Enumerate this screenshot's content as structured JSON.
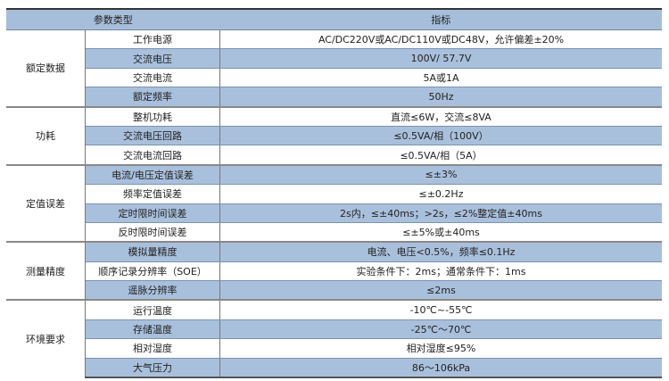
{
  "header": {
    "type": "参数类型",
    "spec": "指标"
  },
  "groups": [
    {
      "name": "额定数据",
      "rows": [
        [
          "工作电源",
          "AC/DC220V或AC/DC110V或DC48V，允许偏差±20%"
        ],
        [
          "交流电压",
          "100V/ 57.7V"
        ],
        [
          "交流电流",
          "5A或1A"
        ],
        [
          "额定频率",
          "50Hz"
        ]
      ]
    },
    {
      "name": "功耗",
      "rows": [
        [
          "整机功耗",
          "直流≤6W，交流≤8VA"
        ],
        [
          "交流电压回路",
          "≤0.5VA/相（100V）"
        ],
        [
          "交流电流回路",
          "≤0.5VA/相（5A）"
        ]
      ]
    },
    {
      "name": "定值误差",
      "rows": [
        [
          "电流/电压定值误差",
          "≤±3%"
        ],
        [
          "频率定值误差",
          "≤±0.2Hz"
        ],
        [
          "定时限时间误差",
          "2s内，≤±40ms；>2s，≤2%整定值±40ms"
        ],
        [
          "反时限时间误差",
          "≤±5%或±40ms"
        ]
      ]
    },
    {
      "name": "测量精度",
      "rows": [
        [
          "模拟量精度",
          "电流、电压<0.5%，频率≤0.1Hz"
        ],
        [
          "顺序记录分辨率（SOE）",
          "实验条件下：2ms；通常条件下：1ms"
        ],
        [
          "遥脉分辨率",
          "≤2ms"
        ]
      ]
    },
    {
      "name": "环境要求",
      "rows": [
        [
          "运行温度",
          "-10℃~-55℃"
        ],
        [
          "存储温度",
          "-25℃～70℃"
        ],
        [
          "相对湿度",
          "相对湿度≤95%"
        ],
        [
          "大气压力",
          "86～106kPa"
        ]
      ]
    }
  ],
  "colors": {
    "header_bg": "#a7bedb",
    "row_bg": "#a9c0dc"
  }
}
